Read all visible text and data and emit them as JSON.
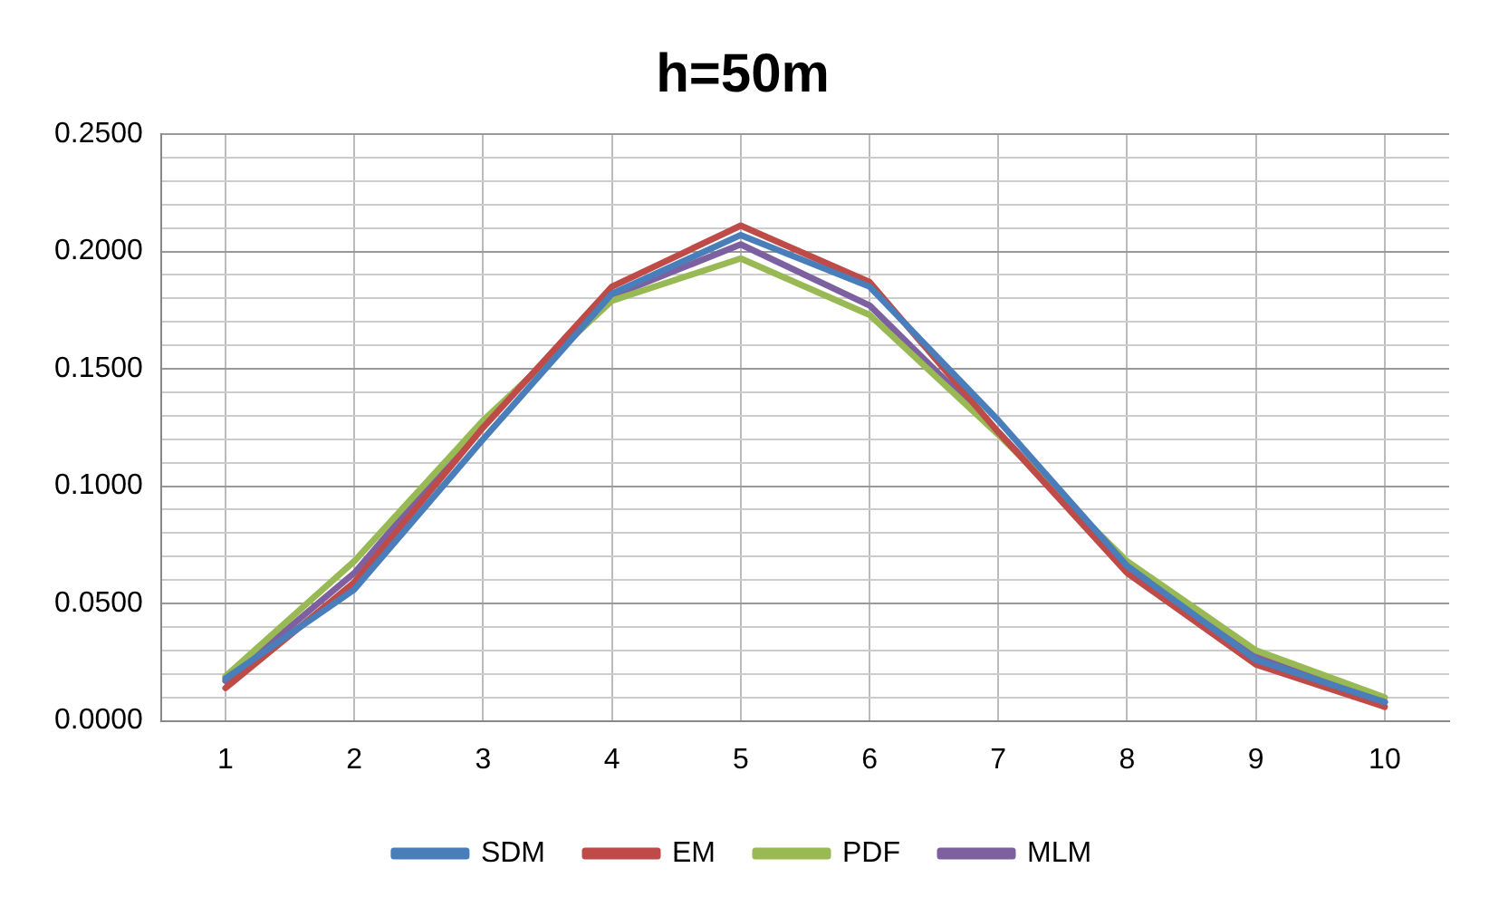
{
  "chart_data": {
    "type": "line",
    "title": "h=50m",
    "categories": [
      "1",
      "2",
      "3",
      "4",
      "5",
      "6",
      "7",
      "8",
      "9",
      "10"
    ],
    "series": [
      {
        "name": "SDM",
        "color": "#4a7ebb",
        "values": [
          0.018,
          0.056,
          0.12,
          0.182,
          0.207,
          0.185,
          0.128,
          0.066,
          0.026,
          0.008
        ]
      },
      {
        "name": "EM",
        "color": "#be4b48",
        "values": [
          0.014,
          0.059,
          0.125,
          0.185,
          0.211,
          0.187,
          0.123,
          0.063,
          0.024,
          0.006
        ]
      },
      {
        "name": "PDF",
        "color": "#98b954",
        "values": [
          0.019,
          0.068,
          0.128,
          0.179,
          0.197,
          0.173,
          0.122,
          0.068,
          0.03,
          0.01
        ]
      },
      {
        "name": "MLM",
        "color": "#7d60a0",
        "values": [
          0.017,
          0.063,
          0.127,
          0.181,
          0.203,
          0.177,
          0.123,
          0.066,
          0.028,
          0.008
        ]
      }
    ],
    "ylim": [
      0,
      0.25
    ],
    "yticks": [
      {
        "value": 0,
        "label": "0.0000"
      },
      {
        "value": 0.01,
        "label": null
      },
      {
        "value": 0.02,
        "label": null
      },
      {
        "value": 0.03,
        "label": null
      },
      {
        "value": 0.04,
        "label": null
      },
      {
        "value": 0.05,
        "label": "0.0500"
      },
      {
        "value": 0.06,
        "label": null
      },
      {
        "value": 0.07,
        "label": null
      },
      {
        "value": 0.08,
        "label": null
      },
      {
        "value": 0.09,
        "label": null
      },
      {
        "value": 0.1,
        "label": "0.1000"
      },
      {
        "value": 0.11,
        "label": null
      },
      {
        "value": 0.12,
        "label": null
      },
      {
        "value": 0.13,
        "label": null
      },
      {
        "value": 0.14,
        "label": null
      },
      {
        "value": 0.15,
        "label": "0.1500"
      },
      {
        "value": 0.16,
        "label": null
      },
      {
        "value": 0.17,
        "label": null
      },
      {
        "value": 0.18,
        "label": null
      },
      {
        "value": 0.19,
        "label": null
      },
      {
        "value": 0.2,
        "label": "0.2000"
      },
      {
        "value": 0.21,
        "label": null
      },
      {
        "value": 0.22,
        "label": null
      },
      {
        "value": 0.23,
        "label": null
      },
      {
        "value": 0.24,
        "label": null
      },
      {
        "value": 0.25,
        "label": "0.2500"
      }
    ],
    "grid": true,
    "legend": "bottom",
    "marker": "none",
    "line_style": "solid"
  }
}
